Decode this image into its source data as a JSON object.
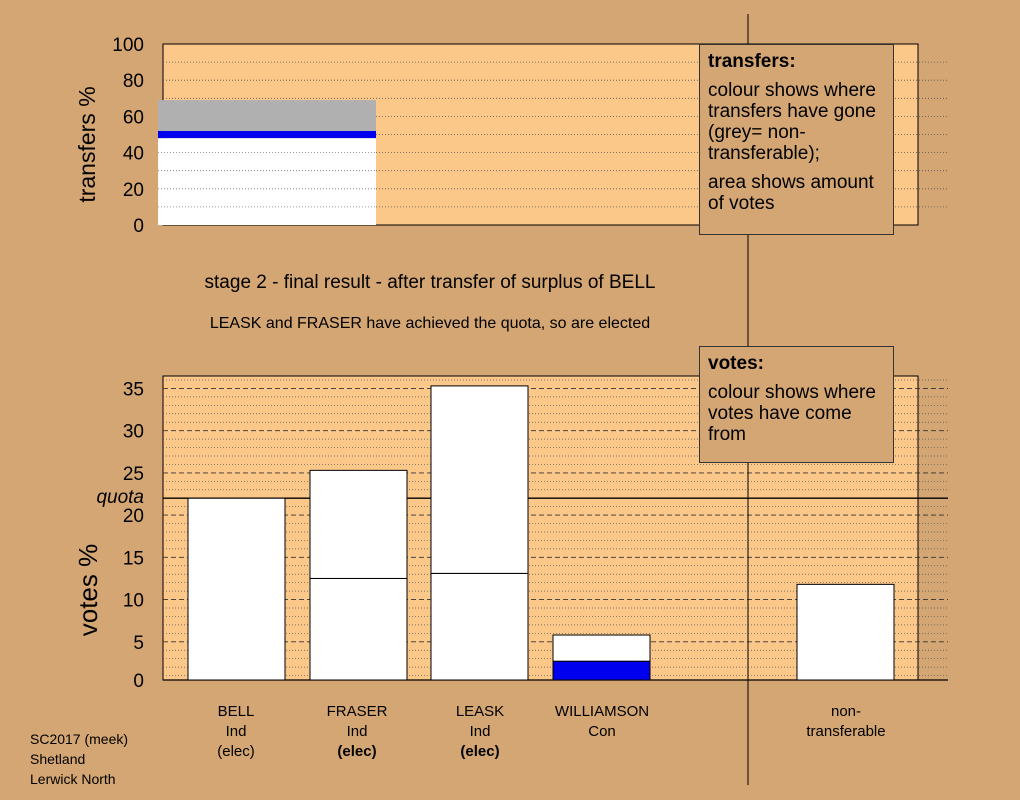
{
  "header": {
    "stage": "stage 2 - final result - after transfer of surplus of BELL",
    "elected": "LEASK and FRASER have achieved the quota, so are elected"
  },
  "legend_transfers": {
    "title": "transfers:",
    "line1": "colour shows where transfers have gone (grey= non-transferable);",
    "line2": "area shows amount of votes"
  },
  "legend_votes": {
    "title": "votes:",
    "line1": "colour shows where votes have come from"
  },
  "footer": {
    "line1": "SC2017 (meek)",
    "line2": "Shetland",
    "line3": "Lerwick North"
  },
  "colors": {
    "background": "#d4a673",
    "plot": "#fcc88a",
    "grey": "#b0b0b0",
    "blue": "#0000ee",
    "white": "#ffffff"
  },
  "chart_data": [
    {
      "type": "bar",
      "name": "transfers",
      "ylabel": "transfers %",
      "ylim": [
        0,
        100
      ],
      "yticks": [
        0,
        20,
        40,
        60,
        80,
        100
      ],
      "segments": [
        {
          "from": 0,
          "to": 48,
          "color": "white"
        },
        {
          "from": 48,
          "to": 52,
          "color": "blue"
        },
        {
          "from": 52,
          "to": 69,
          "color": "grey"
        }
      ]
    },
    {
      "type": "bar",
      "name": "votes",
      "ylabel": "votes %",
      "ylim": [
        0,
        36
      ],
      "yticks": [
        0,
        5,
        10,
        15,
        20,
        25,
        30,
        35
      ],
      "quota": 22,
      "quota_label": "quota",
      "candidates": [
        {
          "name": "BELL",
          "party": "Ind",
          "status": "(elec)",
          "status_bold": false,
          "segments": [
            {
              "value": 22,
              "color": "white"
            }
          ]
        },
        {
          "name": "FRASER",
          "party": "Ind",
          "status": "(elec)",
          "status_bold": true,
          "segments": [
            {
              "value": 12.5,
              "color": "white"
            },
            {
              "value": 12.8,
              "color": "white"
            }
          ]
        },
        {
          "name": "LEASK",
          "party": "Ind",
          "status": "(elec)",
          "status_bold": true,
          "segments": [
            {
              "value": 13.1,
              "color": "white"
            },
            {
              "value": 22.2,
              "color": "white"
            }
          ]
        },
        {
          "name": "WILLIAMSON",
          "party": "Con",
          "status": "",
          "status_bold": false,
          "segments": [
            {
              "value": 2.7,
              "color": "blue"
            },
            {
              "value": 3.1,
              "color": "white"
            }
          ]
        },
        {
          "name": "non-transferable",
          "party": "",
          "status": "",
          "status_bold": false,
          "segments": [
            {
              "value": 11.8,
              "color": "white"
            }
          ]
        }
      ]
    }
  ]
}
